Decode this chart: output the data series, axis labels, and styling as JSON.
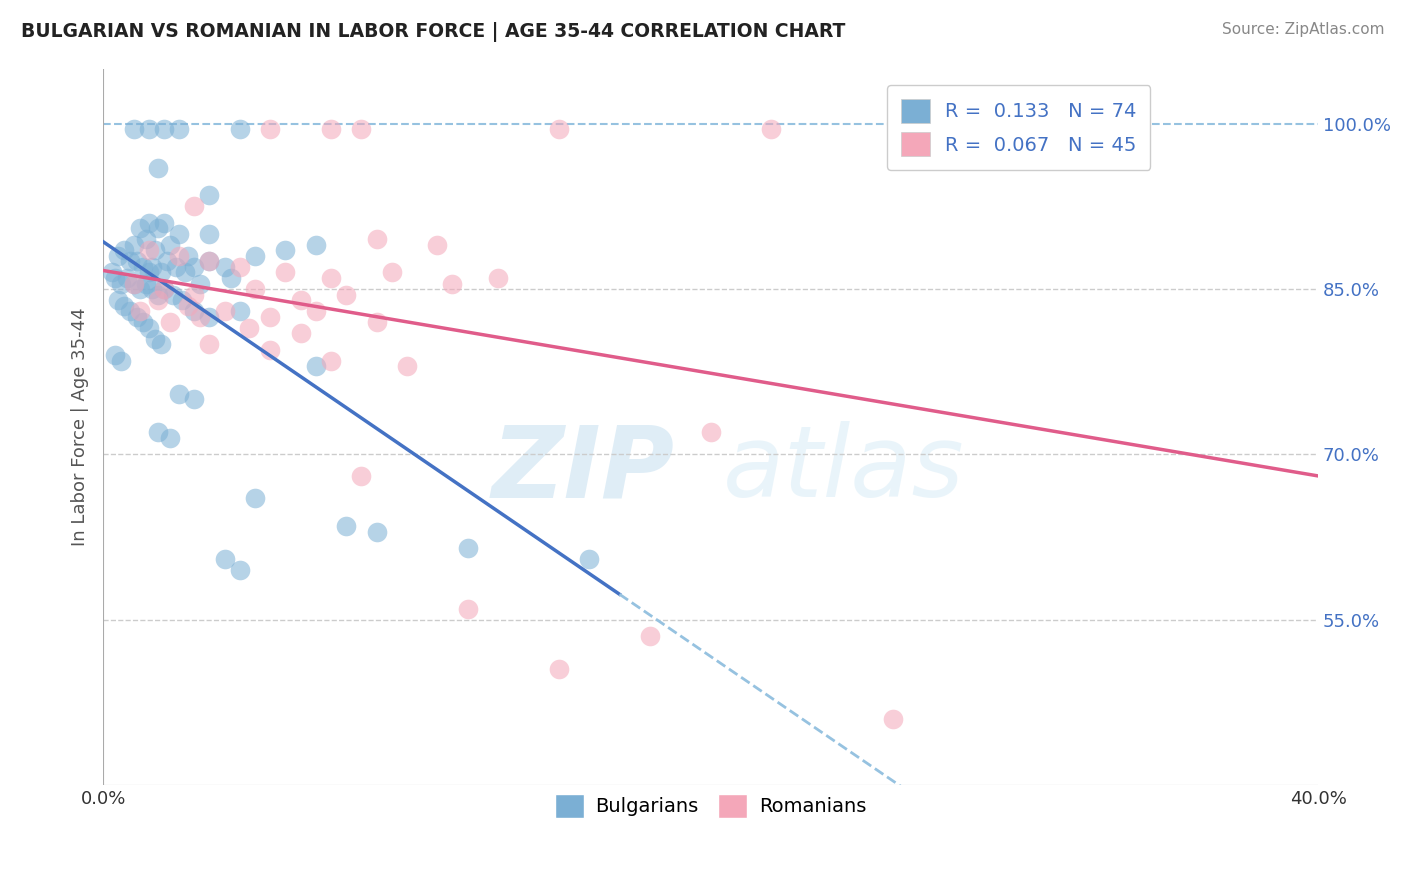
{
  "title": "BULGARIAN VS ROMANIAN IN LABOR FORCE | AGE 35-44 CORRELATION CHART",
  "source": "Source: ZipAtlas.com",
  "ylabel": "In Labor Force | Age 35-44",
  "xlim": [
    0.0,
    40.0
  ],
  "ylim": [
    40.0,
    105.0
  ],
  "xtick_positions": [
    0.0,
    10.0,
    20.0,
    30.0,
    40.0
  ],
  "xticklabels": [
    "0.0%",
    "",
    "",
    "",
    "40.0%"
  ],
  "ytick_positions": [
    55.0,
    70.0,
    85.0,
    100.0
  ],
  "ytick_labels": [
    "55.0%",
    "70.0%",
    "85.0%",
    "100.0%"
  ],
  "bg_color": "#ffffff",
  "grid_color": "#cccccc",
  "blue_color": "#7BAFD4",
  "pink_color": "#F4A7B9",
  "blue_line_color": "#4472C4",
  "pink_line_color": "#E05C8A",
  "dashed_line_color": "#96C2E0",
  "R_blue": 0.133,
  "N_blue": 74,
  "R_pink": 0.067,
  "N_pink": 45,
  "legend_label_blue": "Bulgarians",
  "legend_label_pink": "Romanians",
  "title_color": "#222222",
  "axis_label_color": "#555555",
  "tick_color_y": "#4472C4",
  "blue_scatter": [
    [
      1.0,
      99.5
    ],
    [
      2.0,
      99.5
    ],
    [
      2.5,
      99.5
    ],
    [
      1.5,
      99.5
    ],
    [
      4.5,
      99.5
    ],
    [
      1.8,
      96.0
    ],
    [
      3.5,
      93.5
    ],
    [
      1.5,
      91.0
    ],
    [
      2.0,
      91.0
    ],
    [
      1.2,
      90.5
    ],
    [
      1.8,
      90.5
    ],
    [
      2.5,
      90.0
    ],
    [
      3.5,
      90.0
    ],
    [
      1.0,
      89.0
    ],
    [
      1.4,
      89.5
    ],
    [
      1.7,
      88.5
    ],
    [
      2.2,
      89.0
    ],
    [
      2.8,
      88.0
    ],
    [
      0.5,
      88.0
    ],
    [
      0.7,
      88.5
    ],
    [
      0.9,
      87.5
    ],
    [
      1.1,
      87.5
    ],
    [
      1.3,
      87.0
    ],
    [
      1.5,
      86.5
    ],
    [
      1.6,
      87.0
    ],
    [
      1.9,
      86.5
    ],
    [
      2.1,
      87.5
    ],
    [
      2.4,
      87.0
    ],
    [
      2.7,
      86.5
    ],
    [
      3.0,
      87.0
    ],
    [
      3.5,
      87.5
    ],
    [
      4.0,
      87.0
    ],
    [
      5.0,
      88.0
    ],
    [
      6.0,
      88.5
    ],
    [
      7.0,
      89.0
    ],
    [
      0.3,
      86.5
    ],
    [
      0.4,
      86.0
    ],
    [
      0.6,
      85.5
    ],
    [
      0.8,
      86.0
    ],
    [
      1.0,
      85.5
    ],
    [
      1.2,
      85.0
    ],
    [
      1.4,
      85.5
    ],
    [
      1.6,
      85.0
    ],
    [
      1.8,
      84.5
    ],
    [
      2.0,
      85.0
    ],
    [
      2.3,
      84.5
    ],
    [
      2.6,
      84.0
    ],
    [
      3.2,
      85.5
    ],
    [
      4.2,
      86.0
    ],
    [
      0.5,
      84.0
    ],
    [
      0.7,
      83.5
    ],
    [
      0.9,
      83.0
    ],
    [
      1.1,
      82.5
    ],
    [
      1.3,
      82.0
    ],
    [
      1.5,
      81.5
    ],
    [
      1.7,
      80.5
    ],
    [
      1.9,
      80.0
    ],
    [
      0.4,
      79.0
    ],
    [
      0.6,
      78.5
    ],
    [
      3.0,
      83.0
    ],
    [
      3.5,
      82.5
    ],
    [
      4.5,
      83.0
    ],
    [
      2.5,
      75.5
    ],
    [
      3.0,
      75.0
    ],
    [
      1.8,
      72.0
    ],
    [
      2.2,
      71.5
    ],
    [
      5.0,
      66.0
    ],
    [
      8.0,
      63.5
    ],
    [
      9.0,
      63.0
    ],
    [
      12.0,
      61.5
    ],
    [
      16.0,
      60.5
    ],
    [
      7.0,
      78.0
    ],
    [
      4.0,
      60.5
    ],
    [
      4.5,
      59.5
    ]
  ],
  "pink_scatter": [
    [
      5.5,
      99.5
    ],
    [
      7.5,
      99.5
    ],
    [
      8.5,
      99.5
    ],
    [
      15.0,
      99.5
    ],
    [
      22.0,
      99.5
    ],
    [
      30.0,
      99.5
    ],
    [
      3.0,
      92.5
    ],
    [
      9.0,
      89.5
    ],
    [
      11.0,
      89.0
    ],
    [
      1.5,
      88.5
    ],
    [
      2.5,
      88.0
    ],
    [
      3.5,
      87.5
    ],
    [
      4.5,
      87.0
    ],
    [
      6.0,
      86.5
    ],
    [
      7.5,
      86.0
    ],
    [
      9.5,
      86.5
    ],
    [
      11.5,
      85.5
    ],
    [
      13.0,
      86.0
    ],
    [
      1.0,
      85.5
    ],
    [
      2.0,
      85.0
    ],
    [
      3.0,
      84.5
    ],
    [
      5.0,
      85.0
    ],
    [
      6.5,
      84.0
    ],
    [
      8.0,
      84.5
    ],
    [
      1.8,
      84.0
    ],
    [
      2.8,
      83.5
    ],
    [
      4.0,
      83.0
    ],
    [
      5.5,
      82.5
    ],
    [
      7.0,
      83.0
    ],
    [
      9.0,
      82.0
    ],
    [
      1.2,
      83.0
    ],
    [
      2.2,
      82.0
    ],
    [
      3.2,
      82.5
    ],
    [
      4.8,
      81.5
    ],
    [
      6.5,
      81.0
    ],
    [
      3.5,
      80.0
    ],
    [
      5.5,
      79.5
    ],
    [
      7.5,
      78.5
    ],
    [
      10.0,
      78.0
    ],
    [
      20.0,
      72.0
    ],
    [
      8.5,
      68.0
    ],
    [
      12.0,
      56.0
    ],
    [
      18.0,
      53.5
    ],
    [
      15.0,
      50.5
    ],
    [
      26.0,
      46.0
    ]
  ]
}
